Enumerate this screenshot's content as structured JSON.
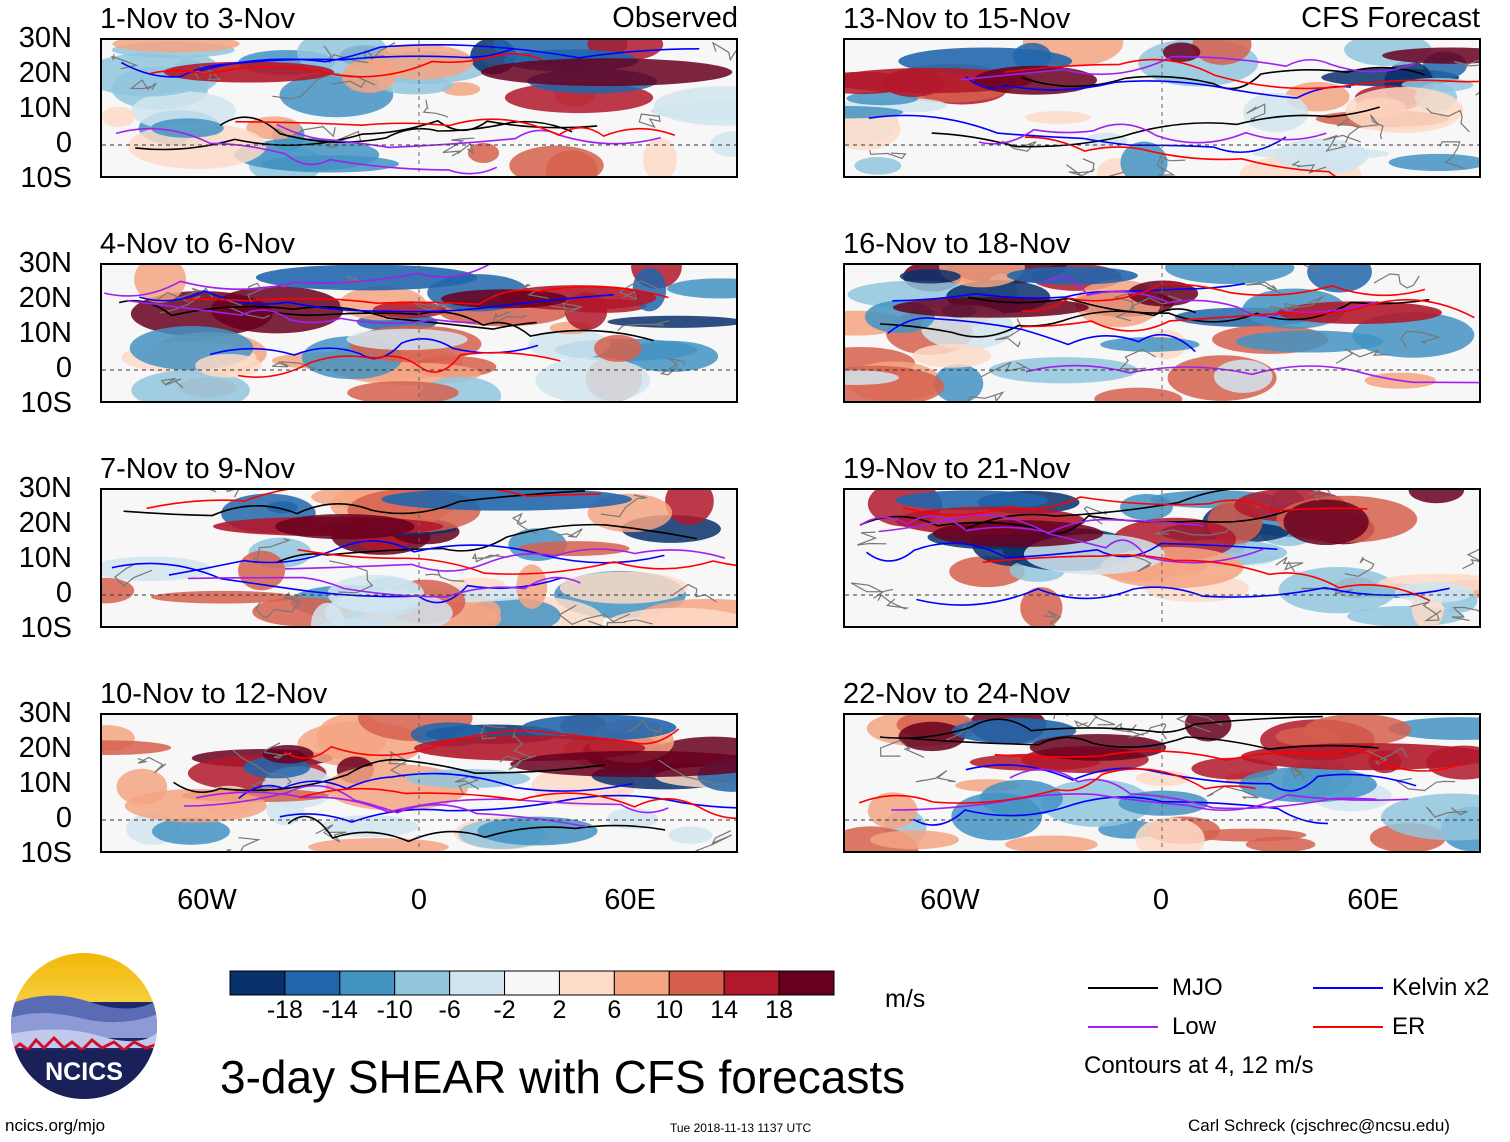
{
  "observed_label": "Observed",
  "forecast_label": "CFS Forecast",
  "lat_labels": [
    "30N",
    "20N",
    "10N",
    "0",
    "10S"
  ],
  "lon_labels": [
    "60W",
    "0",
    "60E"
  ],
  "panels": {
    "left": [
      {
        "title": "1-Nov to 3-Nov"
      },
      {
        "title": "4-Nov to 6-Nov"
      },
      {
        "title": "7-Nov to 9-Nov"
      },
      {
        "title": "10-Nov to 12-Nov"
      }
    ],
    "right": [
      {
        "title": "13-Nov to 15-Nov"
      },
      {
        "title": "16-Nov to 18-Nov"
      },
      {
        "title": "19-Nov to 21-Nov"
      },
      {
        "title": "22-Nov to 24-Nov"
      }
    ]
  },
  "colorbar": {
    "labels": [
      "-18",
      "-14",
      "-10",
      "-6",
      "-2",
      "2",
      "6",
      "10",
      "14",
      "18"
    ],
    "colors": [
      "#08306b",
      "#2166ac",
      "#4393c3",
      "#92c5de",
      "#d1e5f0",
      "#f7f7f7",
      "#fddbc7",
      "#f4a582",
      "#d6604d",
      "#b2182b",
      "#67001f"
    ],
    "units": "m/s"
  },
  "legend": {
    "mjo": {
      "label": "MJO",
      "color": "#000000"
    },
    "kelvin": {
      "label": "Kelvin x2",
      "color": "#0000ff"
    },
    "low": {
      "label": "Low",
      "color": "#a020f0"
    },
    "er": {
      "label": "ER",
      "color": "#ff0000"
    },
    "contours_note": "Contours at 4, 12 m/s"
  },
  "logo_text": "NCICS",
  "main_title": "3-day SHEAR with CFS forecasts",
  "footer": {
    "left": "ncics.org/mjo",
    "center": "Tue 2018-11-13 1137 UTC",
    "right": "Carl Schreck (cjschrec@ncsu.edu)"
  }
}
